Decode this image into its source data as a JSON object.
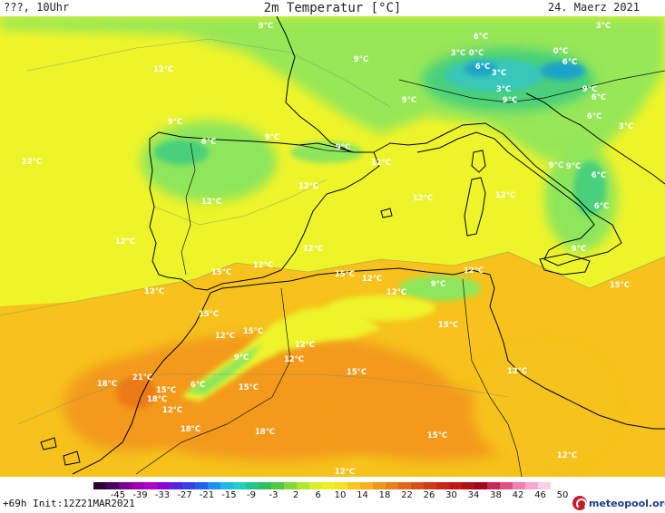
{
  "header": {
    "left": "???, 10Uhr",
    "title": "2m Temperatur [°C]",
    "date": "24. Maerz 2021"
  },
  "footer": {
    "run": "+69h  Init:12Z21MAR2021",
    "logo_text": "meteopool.org"
  },
  "legend": {
    "labels": [
      "-45",
      "-39",
      "-33",
      "-27",
      "-21",
      "-15",
      "-9",
      "-3",
      "2",
      "6",
      "10",
      "14",
      "18",
      "22",
      "26",
      "30",
      "34",
      "38",
      "42",
      "46",
      "50"
    ]
  },
  "map": {
    "region": "Iberian Peninsula, Western Mediterranean, North Africa",
    "colors": {
      "temp_0": "#1aa3c9",
      "temp_3": "#38c7b8",
      "temp_6": "#49d07a",
      "temp_9": "#8ee65b",
      "temp_12": "#eef42a",
      "temp_15": "#f6c21b",
      "temp_18": "#f39a1a",
      "temp_21": "#ec7a18",
      "coastline": "#000000",
      "border": "#111111",
      "label": "#ffffff"
    },
    "temp_labels": [
      "9°C",
      "9°C",
      "6°C",
      "3°C",
      "0°C",
      "3°C",
      "6°C",
      "0°C",
      "6°C",
      "3°C",
      "3°C",
      "9°C",
      "9°C",
      "6°C",
      "12°C",
      "9°C",
      "6°C",
      "3°C",
      "9°C",
      "6°C",
      "9°C",
      "9°C",
      "12°C",
      "9°C",
      "12°C",
      "12°C",
      "12°C",
      "12°C",
      "9°C",
      "6°C",
      "12°C",
      "12°C",
      "12°C",
      "6°C",
      "9°C",
      "12°C",
      "15°C",
      "12°C",
      "15°C",
      "12°C",
      "12°C",
      "12°C",
      "9°C",
      "15°C",
      "15°C",
      "15°C",
      "12°C",
      "15°C",
      "12°C",
      "12°C",
      "9°C",
      "15°C",
      "21°C",
      "18°C",
      "15°C",
      "6°C",
      "15°C",
      "18°C",
      "12°C",
      "12°C",
      "18°C",
      "18°C",
      "15°C",
      "12°C",
      "12°C",
      "18°C"
    ]
  }
}
